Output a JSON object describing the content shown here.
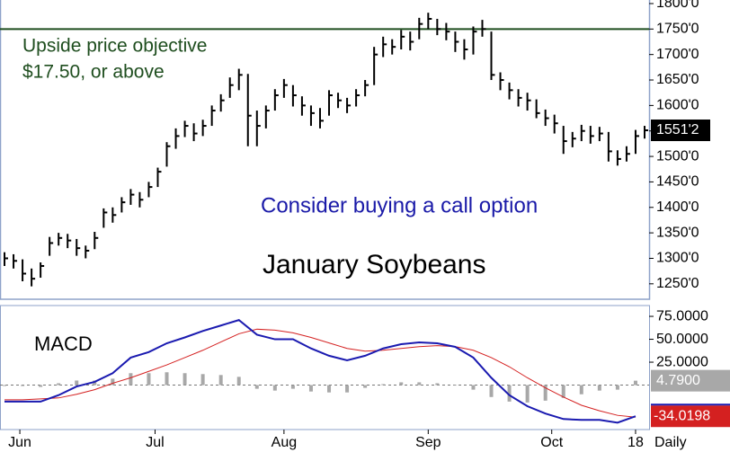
{
  "chart_data": {
    "type": "ohlc",
    "title": "January Soybeans",
    "annotations": [
      {
        "text": "Upside price objective",
        "color": "#1f4e1f"
      },
      {
        "text": "$17.50, or above",
        "color": "#1f4e1f"
      },
      {
        "text": "Consider buying a call option",
        "color": "#1a1aa8"
      }
    ],
    "price": {
      "color": "#000000",
      "high": [
        1312,
        1308,
        1298,
        1280,
        1292,
        1342,
        1350,
        1348,
        1338,
        1325,
        1352,
        1398,
        1400,
        1420,
        1436,
        1430,
        1450,
        1478,
        1528,
        1555,
        1570,
        1565,
        1572,
        1600,
        1622,
        1655,
        1672,
        1662,
        1590,
        1600,
        1632,
        1652,
        1640,
        1618,
        1600,
        1595,
        1630,
        1625,
        1615,
        1632,
        1650,
        1715,
        1735,
        1730,
        1748,
        1745,
        1772,
        1782,
        1770,
        1762,
        1745,
        1730,
        1755,
        1768,
        1745,
        1665,
        1645,
        1632,
        1625,
        1612,
        1592,
        1582,
        1560,
        1548,
        1562,
        1560,
        1558,
        1548,
        1512,
        1520,
        1552,
        1560
      ],
      "low": [
        1285,
        1280,
        1255,
        1245,
        1262,
        1305,
        1325,
        1320,
        1305,
        1300,
        1318,
        1360,
        1370,
        1390,
        1405,
        1400,
        1420,
        1440,
        1480,
        1515,
        1538,
        1530,
        1540,
        1560,
        1588,
        1615,
        1630,
        1520,
        1520,
        1555,
        1590,
        1615,
        1598,
        1580,
        1560,
        1555,
        1580,
        1595,
        1585,
        1598,
        1618,
        1640,
        1695,
        1700,
        1710,
        1708,
        1730,
        1750,
        1738,
        1728,
        1705,
        1690,
        1700,
        1735,
        1650,
        1630,
        1612,
        1598,
        1590,
        1575,
        1560,
        1545,
        1505,
        1518,
        1530,
        1525,
        1530,
        1490,
        1482,
        1490,
        1505,
        1535
      ],
      "close": [
        1300,
        1295,
        1270,
        1260,
        1285,
        1330,
        1340,
        1335,
        1320,
        1315,
        1340,
        1390,
        1385,
        1410,
        1425,
        1415,
        1440,
        1470,
        1520,
        1540,
        1560,
        1545,
        1560,
        1590,
        1610,
        1640,
        1660,
        1580,
        1560,
        1590,
        1620,
        1640,
        1620,
        1600,
        1585,
        1570,
        1620,
        1610,
        1600,
        1620,
        1640,
        1700,
        1720,
        1715,
        1735,
        1725,
        1760,
        1770,
        1750,
        1745,
        1725,
        1710,
        1745,
        1750,
        1660,
        1650,
        1630,
        1615,
        1610,
        1585,
        1575,
        1565,
        1530,
        1535,
        1550,
        1540,
        1545,
        1510,
        1495,
        1505,
        1540,
        1551.25
      ],
      "last_price_label": "1551'2"
    },
    "hline": {
      "value": 1750,
      "color": "#1f4e1f"
    },
    "ylim": [
      1225,
      1807
    ],
    "yticks": [
      {
        "value": 1250,
        "label": "1250'0"
      },
      {
        "value": 1300,
        "label": "1300'0"
      },
      {
        "value": 1350,
        "label": "1350'0"
      },
      {
        "value": 1400,
        "label": "1400'0"
      },
      {
        "value": 1450,
        "label": "1450'0"
      },
      {
        "value": 1500,
        "label": "1500'0"
      },
      {
        "value": 1550,
        "label": "1550'0"
      },
      {
        "value": 1600,
        "label": "1600'0"
      },
      {
        "value": 1650,
        "label": "1650'0"
      },
      {
        "value": 1700,
        "label": "1700'0"
      },
      {
        "value": 1750,
        "label": "1750'0"
      },
      {
        "value": 1800,
        "label": "1800'0"
      }
    ],
    "xticks": [
      {
        "value": 1.7,
        "label": "Jun"
      },
      {
        "value": 16.7,
        "label": "Jul"
      },
      {
        "value": 31,
        "label": "Aug"
      },
      {
        "value": 47,
        "label": "Sep"
      },
      {
        "value": 60.7,
        "label": "Oct"
      },
      {
        "value": 70,
        "label": "18"
      }
    ],
    "x_axis_label": "Daily",
    "macd": {
      "label": "MACD",
      "ylim": [
        -48.5,
        86.8
      ],
      "yticks": [
        {
          "value": 25,
          "label": "25.0000"
        },
        {
          "value": 50,
          "label": "50.0000"
        },
        {
          "value": 75,
          "label": "75.0000"
        }
      ],
      "line": {
        "color": "#1a1ab0",
        "values": [
          -18,
          -18,
          -18,
          -11,
          -1.5,
          3.5,
          13,
          30,
          36,
          45.6,
          52,
          59,
          65,
          71,
          55,
          50,
          50,
          40,
          32,
          27,
          32,
          40,
          44.6,
          46.6,
          45.6,
          41.7,
          30,
          8,
          -11,
          -23,
          -31,
          -37,
          -38,
          -38,
          -41,
          -34.0198
        ]
      },
      "signal": {
        "color": "#d42020",
        "values": [
          -16,
          -16,
          -15,
          -14,
          -10,
          -5,
          2,
          8,
          15,
          22,
          30,
          38,
          47,
          56,
          61,
          60,
          57,
          52,
          46,
          40,
          37,
          38,
          40,
          42,
          43,
          42,
          38,
          30,
          20,
          8,
          -3,
          -13,
          -22,
          -28,
          -33,
          -35
        ]
      },
      "histogram": {
        "color": "#a8a8a8",
        "values": [
          -1,
          -1,
          -2,
          2,
          5,
          5,
          7,
          13,
          13,
          14,
          13,
          12,
          11,
          9,
          -4,
          -6,
          -4,
          -7,
          -8,
          -8,
          -3,
          1,
          3,
          3,
          2,
          0,
          -5,
          -13,
          -18,
          -19,
          -17,
          -14,
          -10,
          -6,
          -5,
          4.79
        ]
      },
      "line_label": "-34.0198",
      "histogram_label": "4.7900"
    }
  }
}
